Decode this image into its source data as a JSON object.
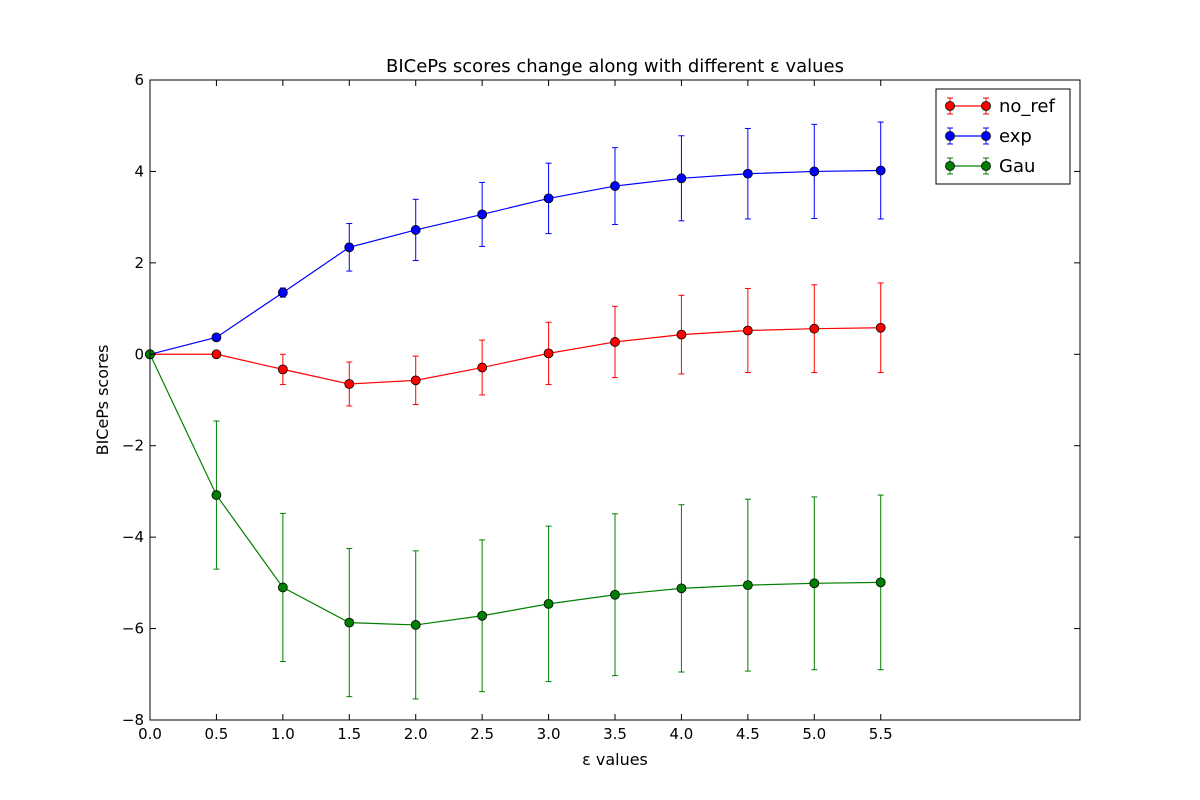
{
  "chart_data": {
    "type": "line",
    "title": "BICePs scores change along with different ε values",
    "xlabel": "ε values",
    "ylabel": "BICePs scores",
    "xlim": [
      0,
      7
    ],
    "ylim": [
      -8,
      6
    ],
    "x_ticks": [
      "0.0",
      "0.5",
      "1.0",
      "1.5",
      "2.0",
      "2.5",
      "3.0",
      "3.5",
      "4.0",
      "4.5",
      "5.0",
      "5.5"
    ],
    "y_ticks": [
      "−8",
      "−6",
      "−4",
      "−2",
      "0",
      "2",
      "4",
      "6"
    ],
    "x": [
      0.0,
      0.5,
      1.0,
      1.5,
      2.0,
      2.5,
      3.0,
      3.5,
      4.0,
      4.5,
      5.0,
      5.5
    ],
    "grid": false,
    "legend_position": "top-right",
    "series": [
      {
        "name": "no_ref",
        "color": "#ff0000",
        "values": [
          0.0,
          0.0,
          -0.33,
          -0.65,
          -0.57,
          -0.29,
          0.02,
          0.27,
          0.43,
          0.52,
          0.56,
          0.58
        ],
        "errors": [
          0.0,
          0.03,
          0.33,
          0.48,
          0.53,
          0.6,
          0.68,
          0.78,
          0.86,
          0.92,
          0.96,
          0.98
        ]
      },
      {
        "name": "exp",
        "color": "#0000ff",
        "values": [
          0.0,
          0.37,
          1.35,
          2.34,
          2.72,
          3.06,
          3.41,
          3.68,
          3.85,
          3.95,
          4.0,
          4.02
        ],
        "errors": [
          0.0,
          0.03,
          0.1,
          0.52,
          0.67,
          0.7,
          0.77,
          0.84,
          0.93,
          0.99,
          1.03,
          1.06
        ]
      },
      {
        "name": "Gau",
        "color": "#008000",
        "values": [
          0.0,
          -3.08,
          -5.1,
          -5.87,
          -5.92,
          -5.72,
          -5.46,
          -5.26,
          -5.12,
          -5.05,
          -5.01,
          -4.99
        ],
        "errors": [
          0.0,
          1.62,
          1.62,
          1.62,
          1.62,
          1.66,
          1.7,
          1.77,
          1.83,
          1.88,
          1.89,
          1.91
        ]
      }
    ]
  }
}
